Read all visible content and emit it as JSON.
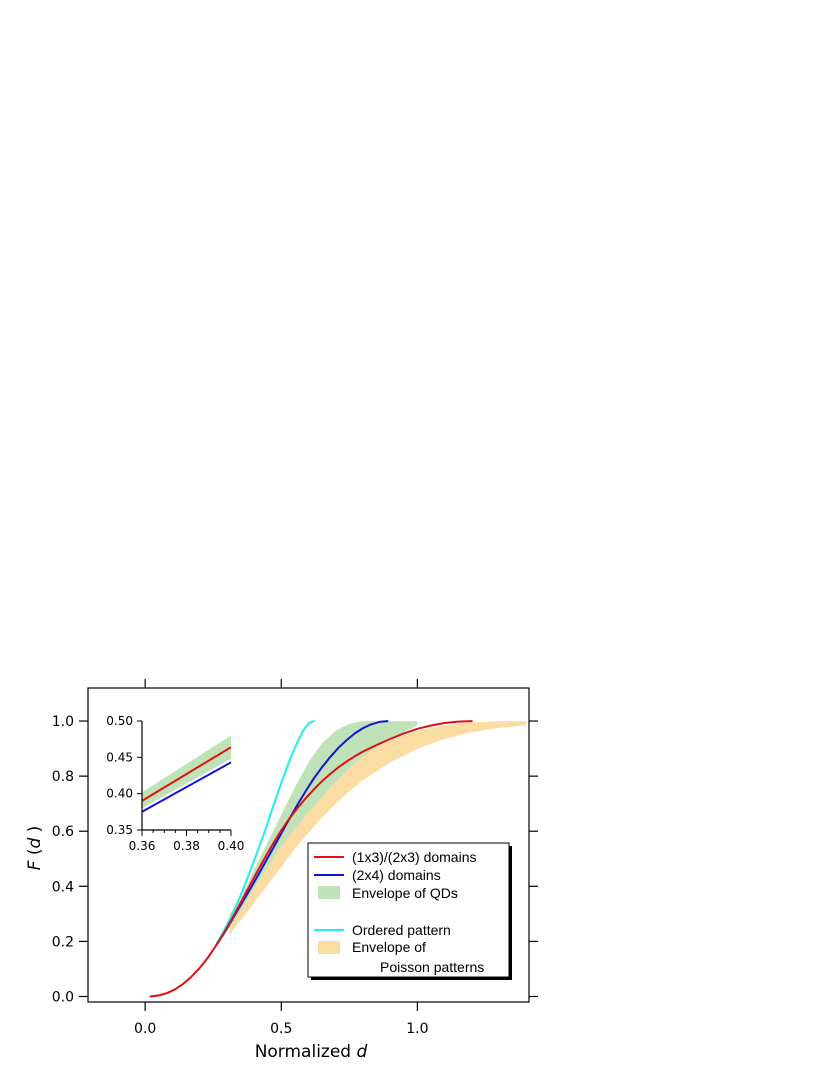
{
  "chart_data": {
    "type": "line",
    "xlabel_prefix": "Normalized ",
    "xlabel_var": "d",
    "ylabel_func": "F",
    "ylabel_var": "d",
    "xlim": [
      -0.21,
      1.41
    ],
    "ylim": [
      -0.02,
      1.12
    ],
    "xticks": [
      0.0,
      0.5,
      1.0
    ],
    "xtick_labels": [
      "0.0",
      "0.5",
      "1.0"
    ],
    "yticks": [
      0.0,
      0.2,
      0.4,
      0.6,
      0.8,
      1.0
    ],
    "ytick_labels": [
      "0.0",
      "0.2",
      "0.4",
      "0.6",
      "0.8",
      "1.0"
    ],
    "grid": false,
    "legend_position": "bottom-right",
    "colors": {
      "red": "#e01010",
      "blue": "#1414d8",
      "cyan": "#1ef0f0",
      "green_band": "#bfe2b8",
      "orange_band": "#fbdda3"
    },
    "series": [
      {
        "name": "(1x3)/(2x3) domains",
        "kind": "line",
        "color": "#e01010",
        "x": [
          0.02,
          0.05,
          0.08,
          0.11,
          0.14,
          0.17,
          0.2,
          0.23,
          0.26,
          0.29,
          0.32,
          0.35,
          0.38,
          0.41,
          0.44,
          0.47,
          0.5,
          0.53,
          0.56,
          0.59,
          0.62,
          0.65,
          0.68,
          0.71,
          0.74,
          0.77,
          0.8,
          0.85,
          0.9,
          0.95,
          1.0,
          1.05,
          1.1,
          1.15,
          1.2
        ],
        "y": [
          0.0,
          0.004,
          0.012,
          0.026,
          0.046,
          0.072,
          0.103,
          0.141,
          0.184,
          0.232,
          0.284,
          0.339,
          0.395,
          0.45,
          0.503,
          0.555,
          0.603,
          0.646,
          0.685,
          0.72,
          0.752,
          0.782,
          0.808,
          0.832,
          0.853,
          0.872,
          0.889,
          0.913,
          0.935,
          0.955,
          0.972,
          0.984,
          0.993,
          0.998,
          1.0
        ]
      },
      {
        "name": "(2x4) domains",
        "kind": "line",
        "color": "#1414d8",
        "x": [
          0.26,
          0.29,
          0.32,
          0.35,
          0.38,
          0.41,
          0.44,
          0.47,
          0.5,
          0.53,
          0.56,
          0.59,
          0.62,
          0.65,
          0.68,
          0.71,
          0.74,
          0.77,
          0.8,
          0.83,
          0.86,
          0.89
        ],
        "y": [
          0.184,
          0.23,
          0.28,
          0.33,
          0.38,
          0.432,
          0.485,
          0.538,
          0.592,
          0.645,
          0.697,
          0.746,
          0.792,
          0.833,
          0.87,
          0.903,
          0.931,
          0.955,
          0.974,
          0.988,
          0.997,
          1.0
        ]
      },
      {
        "name": "Envelope of QDs",
        "kind": "band",
        "color": "#bfe2b8",
        "x": [
          0.26,
          0.3,
          0.35,
          0.4,
          0.45,
          0.5,
          0.55,
          0.6,
          0.65,
          0.7,
          0.75,
          0.8,
          0.85,
          0.9,
          0.95,
          1.0
        ],
        "y_low": [
          0.18,
          0.235,
          0.31,
          0.395,
          0.47,
          0.545,
          0.61,
          0.67,
          0.725,
          0.78,
          0.83,
          0.87,
          0.905,
          0.935,
          0.96,
          0.985
        ],
        "y_high": [
          0.195,
          0.265,
          0.35,
          0.46,
          0.56,
          0.66,
          0.76,
          0.85,
          0.92,
          0.965,
          0.99,
          1.0,
          1.0,
          1.0,
          1.0,
          1.0
        ]
      },
      {
        "name": "Ordered pattern",
        "kind": "line",
        "color": "#1ef0f0",
        "x": [
          0.26,
          0.29,
          0.32,
          0.35,
          0.38,
          0.41,
          0.44,
          0.47,
          0.5,
          0.52,
          0.54,
          0.56,
          0.58,
          0.6,
          0.62
        ],
        "y": [
          0.185,
          0.24,
          0.3,
          0.365,
          0.44,
          0.52,
          0.6,
          0.69,
          0.775,
          0.83,
          0.88,
          0.925,
          0.965,
          0.992,
          1.0
        ]
      },
      {
        "name": "Envelope of Poisson patterns",
        "kind": "band",
        "color": "#fbdda3",
        "x": [
          0.31,
          0.35,
          0.4,
          0.45,
          0.5,
          0.55,
          0.6,
          0.65,
          0.7,
          0.75,
          0.8,
          0.9,
          1.0,
          1.1,
          1.2,
          1.3,
          1.4
        ],
        "y_low": [
          0.225,
          0.275,
          0.34,
          0.405,
          0.47,
          0.535,
          0.595,
          0.65,
          0.7,
          0.745,
          0.785,
          0.85,
          0.9,
          0.935,
          0.96,
          0.975,
          0.985
        ],
        "y_high": [
          0.3,
          0.35,
          0.42,
          0.49,
          0.56,
          0.625,
          0.69,
          0.745,
          0.795,
          0.84,
          0.88,
          0.93,
          0.965,
          0.985,
          0.995,
          1.0,
          1.0
        ]
      }
    ],
    "legend": {
      "entries": [
        {
          "label": "(1x3)/(2x3) domains",
          "swatch": "line",
          "color": "#e01010"
        },
        {
          "label": "(2x4) domains",
          "swatch": "line",
          "color": "#1414d8"
        },
        {
          "label": "Envelope of QDs",
          "swatch": "box",
          "color": "#bfe2b8"
        },
        {
          "label": "Ordered pattern",
          "swatch": "line",
          "color": "#1ef0f0"
        },
        {
          "label": "Envelope of",
          "label2": "Poisson patterns",
          "swatch": "box",
          "color": "#fbdda3"
        }
      ]
    },
    "inset": {
      "type": "line",
      "xlim": [
        0.36,
        0.4
      ],
      "ylim": [
        0.35,
        0.5
      ],
      "xticks": [
        0.36,
        0.38,
        0.4
      ],
      "xtick_labels": [
        "0.36",
        "0.38",
        "0.40"
      ],
      "yticks": [
        0.35,
        0.4,
        0.45,
        0.5
      ],
      "ytick_labels": [
        "0.35",
        "0.40",
        "0.45",
        "0.50"
      ],
      "series": [
        {
          "name": "Envelope of QDs",
          "kind": "band",
          "color": "#bfe2b8",
          "x": [
            0.36,
            0.4
          ],
          "y_low": [
            0.38,
            0.448
          ],
          "y_high": [
            0.402,
            0.48
          ]
        },
        {
          "name": "(1x3)/(2x3) domains",
          "kind": "line",
          "color": "#e01010",
          "x": [
            0.36,
            0.4
          ],
          "y": [
            0.39,
            0.464
          ]
        },
        {
          "name": "(2x4) domains",
          "kind": "line",
          "color": "#1414d8",
          "x": [
            0.36,
            0.4
          ],
          "y": [
            0.375,
            0.443
          ]
        }
      ]
    }
  }
}
